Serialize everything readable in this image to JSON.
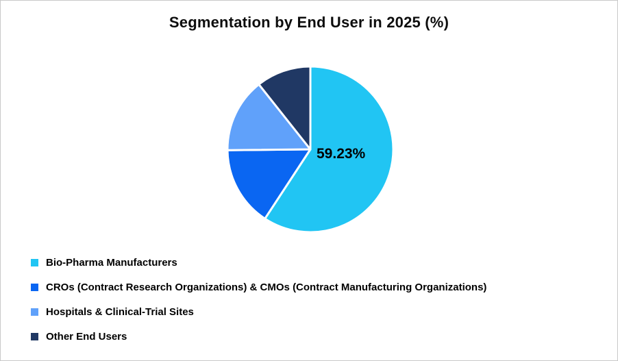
{
  "title": "Segmentation by End User in 2025 (%)",
  "chart_data": {
    "type": "pie",
    "title": "Segmentation by End User in 2025 (%)",
    "start_angle_deg": 0,
    "direction": "clockwise",
    "legend_position": "bottom-left",
    "separator_color": "#ffffff",
    "slices": [
      {
        "label": "Bio-Pharma Manufacturers",
        "value": 59.23,
        "color": "#21c5f3",
        "data_label": "59.23%"
      },
      {
        "label": "CROs (Contract Research Organizations) & CMOs (Contract Manufacturing Organizations)",
        "value": 15.6,
        "color": "#0a66f2",
        "data_label": ""
      },
      {
        "label": "Hospitals & Clinical-Trial Sites",
        "value": 14.5,
        "color": "#60a1fa",
        "data_label": ""
      },
      {
        "label": "Other End Users",
        "value": 10.67,
        "color": "#203864",
        "data_label": ""
      }
    ]
  }
}
